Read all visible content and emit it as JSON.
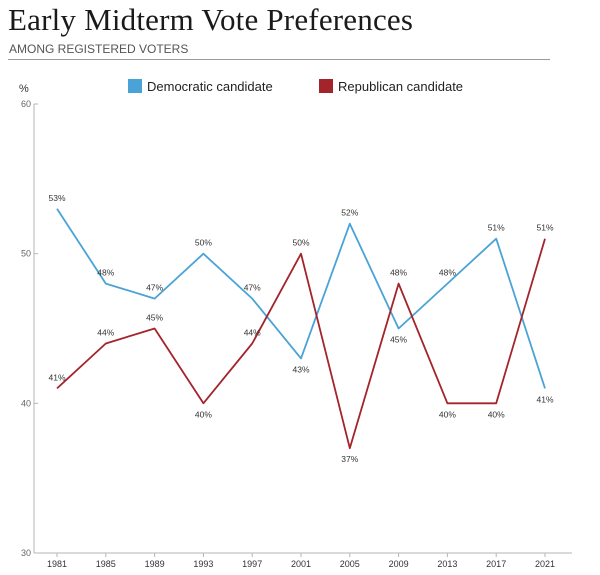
{
  "title": "Early Midterm Vote Preferences",
  "subtitle": "AMONG REGISTERED VOTERS",
  "colors": {
    "democratic": "#4aa3d6",
    "republican": "#a3242b",
    "axis": "#b5b5b5"
  },
  "chart_data": {
    "type": "line",
    "ylabel": "%",
    "ylim": [
      30,
      60
    ],
    "yticks": [
      30,
      40,
      50,
      60
    ],
    "grid": false,
    "legend_position": "top",
    "categories": [
      "1981",
      "1985",
      "1989",
      "1993",
      "1997",
      "2001",
      "2005",
      "2009",
      "2013",
      "2017",
      "2021"
    ],
    "series": [
      {
        "name": "Democratic candidate",
        "color_key": "democratic",
        "values": [
          53,
          48,
          47,
          50,
          47,
          43,
          52,
          45,
          48,
          51,
          41
        ],
        "labels": [
          "53%",
          "48%",
          "47%",
          "50%",
          "47%",
          "43%",
          "52%",
          "45%",
          "48%",
          "51%",
          "41%"
        ],
        "label_pos": [
          "above",
          "above",
          "above",
          "above",
          "above",
          "below",
          "above",
          "below",
          "above",
          "above",
          "below"
        ]
      },
      {
        "name": "Republican candidate",
        "color_key": "republican",
        "values": [
          41,
          44,
          45,
          40,
          44,
          50,
          37,
          48,
          40,
          40,
          51
        ],
        "labels": [
          "41%",
          "44%",
          "45%",
          "40%",
          "44%",
          "50%",
          "37%",
          "48%",
          "40%",
          "40%",
          "51%"
        ],
        "label_pos": [
          "above",
          "above",
          "above",
          "below",
          "above",
          "above",
          "below",
          "above",
          "below",
          "below",
          "above"
        ]
      }
    ]
  }
}
